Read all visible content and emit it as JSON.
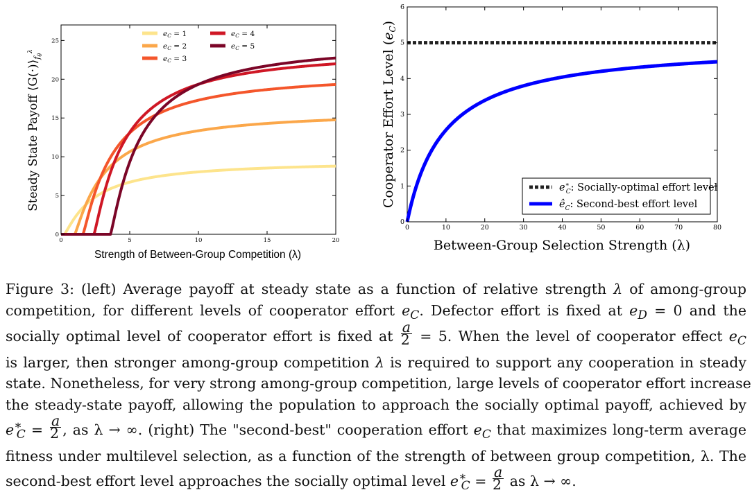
{
  "figure": {
    "chart_data": [
      {
        "type": "line",
        "title": "",
        "xlabel": "Strength of Between-Group Competition (λ)",
        "ylabel": "Steady State Payoff ⟨G(·)⟩",
        "ylabel_sub": "f",
        "ylabel_subsub": "θ",
        "ylabel_sup": "λ",
        "xlim": [
          0,
          20
        ],
        "ylim": [
          0,
          27
        ],
        "xticks": [
          0,
          5,
          10,
          15,
          20
        ],
        "yticks": [
          0,
          5,
          10,
          15,
          20,
          25
        ],
        "legend_loc": "top-center",
        "series": [
          {
            "name": "e_C = 1",
            "legend_base": "e",
            "legend_sub": "C",
            "legend_rest": " = 1",
            "color": "#fde48c",
            "ec": 1,
            "threshold": 0.25,
            "asymptote": 9.5
          },
          {
            "name": "e_C = 2",
            "legend_base": "e",
            "legend_sub": "C",
            "legend_rest": " = 2",
            "color": "#fba74a",
            "ec": 2,
            "threshold": 1.0,
            "asymptote": 16.0
          },
          {
            "name": "e_C = 3",
            "legend_base": "e",
            "legend_sub": "C",
            "legend_rest": " = 3",
            "color": "#f4562b",
            "ec": 3,
            "threshold": 1.6,
            "asymptote": 21.0
          },
          {
            "name": "e_C = 4",
            "legend_base": "e",
            "legend_sub": "C",
            "legend_rest": " = 4",
            "color": "#cf1725",
            "ec": 4,
            "threshold": 2.4,
            "asymptote": 24.0
          },
          {
            "name": "e_C = 5",
            "legend_base": "e",
            "legend_sub": "C",
            "legend_rest": " = 5",
            "color": "#7b0527",
            "ec": 5,
            "threshold": 3.6,
            "asymptote": 25.0
          }
        ]
      },
      {
        "type": "line",
        "title": "",
        "xlabel": "Between-Group Selection Strength (λ)",
        "ylabel": "Cooperator Effort Level (",
        "ylabel_var": "e",
        "ylabel_sub": "C",
        "ylabel_end": ")",
        "xlim": [
          0,
          80
        ],
        "ylim": [
          0,
          6
        ],
        "xticks": [
          0,
          10,
          20,
          30,
          40,
          50,
          60,
          70,
          80
        ],
        "yticks": [
          0,
          1,
          2,
          3,
          4,
          5,
          6
        ],
        "legend_loc": "bottom-right",
        "series": [
          {
            "name": "e*_C: Socially-optimal effort level",
            "legend_var": "e",
            "legend_sup": "∗",
            "legend_sub": "C",
            "legend_text": ": Socially-optimal effort level",
            "color": "#222222",
            "style": "dotted",
            "value": 5
          },
          {
            "name": "ê_C: Second-best effort level",
            "legend_var": "ê",
            "legend_sub": "C",
            "legend_text": ": Second-best effort level",
            "color": "#0000ff",
            "style": "solid",
            "formula": "5·λ/(λ+9.5)"
          }
        ]
      }
    ]
  },
  "caption": {
    "l1_a": "Figure 3: (left) Average payoff at steady state as a function of relative strength ",
    "l1_b": "λ",
    "l1_c": " of among-group",
    "l2_a": "competition, for different levels of cooperator effort ",
    "l2_b": "e",
    "l2_c": "C",
    "l2_d": ". Defector effort is fixed at ",
    "l2_e": "e",
    "l2_f": "D",
    "l2_g": " = 0 and the",
    "l3_a": "socially optimal level of cooperator effort is fixed at ",
    "frac_num": "a",
    "frac_den": "2",
    "l3_b": " = 5. When the level of cooperator effect ",
    "l3_c": "e",
    "l3_d": "C",
    "l4_a": "is larger, then stronger among-group competition ",
    "l4_b": "λ",
    "l4_c": " is required to support any cooperation in steady",
    "l5": "state. Nonetheless, for very strong among-group competition, large levels of cooperator effort increase",
    "l6": "the steady-state payoff, allowing the population to approach the socially optimal payoff, achieved by",
    "l7_a": "e",
    "l7_b": "∗",
    "l7_c": "C",
    "l7_d": " = ",
    "l7_e": ", as λ → ∞. (right) The \"second-best\" cooperation effort ",
    "l7_f": "e",
    "l7_g": "C",
    "l7_h": " that maximizes long-term average",
    "l8": "fitness under multilevel selection, as a function of the strength of between group competition, λ. The",
    "l9_a": "second-best effort level approaches the socially optimal level ",
    "l9_b": "e",
    "l9_c": "∗",
    "l9_d": "C",
    "l9_e": " = ",
    "l9_f": " as λ → ∞."
  }
}
